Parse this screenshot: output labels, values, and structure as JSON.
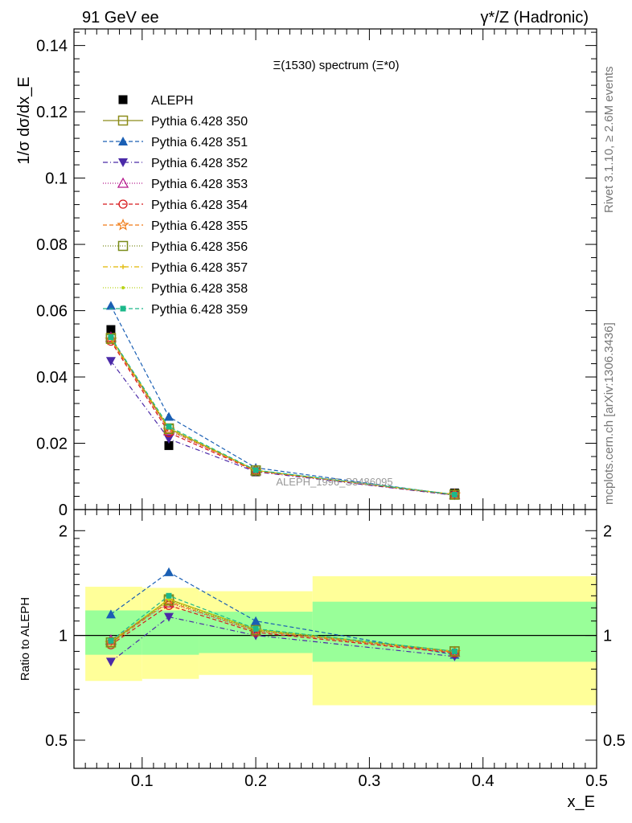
{
  "header": {
    "left": "91 GeV ee",
    "right": "γ*/Z (Hadronic)"
  },
  "side_text": {
    "rivet": "Rivet 3.1.10, ≥ 2.6M events",
    "mcplots": "mcplots.cern.ch [arXiv:1306.3436]"
  },
  "chart_data": [
    {
      "type": "line",
      "title": "Ξ(1530) spectrum (Ξ*0)",
      "ylabel": "1/σ dσ/dx_E",
      "xlabel": "",
      "xlim": [
        0.04,
        0.5
      ],
      "ylim": [
        0,
        0.145
      ],
      "yticks": [
        0,
        0.02,
        0.04,
        0.06,
        0.08,
        0.1,
        0.12,
        0.14
      ],
      "yticklabels": [
        "0",
        "0.02",
        "0.04",
        "0.06",
        "0.08",
        "0.1",
        "0.12",
        "0.14"
      ],
      "watermark": "ALEPH_1996_S3486095",
      "legend_position": "top-left",
      "x": [
        0.0725,
        0.1235,
        0.2,
        0.375
      ],
      "series": [
        {
          "name": "ALEPH",
          "color": "#000000",
          "dash": "",
          "marker": "square-filled",
          "values": [
            0.0543,
            0.0193,
            0.0114,
            0.005
          ]
        },
        {
          "name": "Pythia 6.428 350",
          "color": "#8c8c1a",
          "dash": "",
          "marker": "square-open",
          "values": [
            0.0518,
            0.0245,
            0.0118,
            0.0045
          ]
        },
        {
          "name": "Pythia 6.428 351",
          "color": "#1a5fb4",
          "dash": "5,3",
          "marker": "triangle-up-filled",
          "values": [
            0.0615,
            0.028,
            0.0126,
            0.0044
          ]
        },
        {
          "name": "Pythia 6.428 352",
          "color": "#4b2aa8",
          "dash": "6,3,1,3",
          "marker": "triangle-down-filled",
          "values": [
            0.0448,
            0.0213,
            0.0114,
            0.0043
          ]
        },
        {
          "name": "Pythia 6.428 353",
          "color": "#b5178c",
          "dash": "1,2",
          "marker": "triangle-up-open",
          "values": [
            0.052,
            0.0238,
            0.0117,
            0.0045
          ]
        },
        {
          "name": "Pythia 6.428 354",
          "color": "#d7191c",
          "dash": "5,3",
          "marker": "circle-open",
          "values": [
            0.0508,
            0.0232,
            0.0116,
            0.0044
          ]
        },
        {
          "name": "Pythia 6.428 355",
          "color": "#f07b16",
          "dash": "5,3",
          "marker": "star-open",
          "values": [
            0.0512,
            0.024,
            0.0117,
            0.0045
          ]
        },
        {
          "name": "Pythia 6.428 356",
          "color": "#7a8c1a",
          "dash": "1,2",
          "marker": "square-open",
          "values": [
            0.0515,
            0.0243,
            0.0118,
            0.0045
          ]
        },
        {
          "name": "Pythia 6.428 357",
          "color": "#e0b800",
          "dash": "6,3,1,3",
          "marker": "tick",
          "values": [
            0.0518,
            0.0246,
            0.0118,
            0.0045
          ]
        },
        {
          "name": "Pythia 6.428 358",
          "color": "#b8d417",
          "dash": "1,2",
          "marker": "dot",
          "values": [
            0.0517,
            0.0246,
            0.0118,
            0.0045
          ]
        },
        {
          "name": "Pythia 6.428 359",
          "color": "#1cb88a",
          "dash": "5,3",
          "marker": "square-small-filled",
          "values": [
            0.052,
            0.025,
            0.0119,
            0.0045
          ]
        }
      ]
    },
    {
      "type": "line",
      "title": "",
      "ylabel": "Ratio to ALEPH",
      "xlabel": "x_E",
      "xlim": [
        0.04,
        0.5
      ],
      "ylim": [
        0.415,
        2.3
      ],
      "log_y": true,
      "yticks": [
        0.5,
        1,
        2
      ],
      "yticklabels": [
        "0.5",
        "1",
        "2"
      ],
      "xticks": [
        0.1,
        0.2,
        0.3,
        0.4,
        0.5
      ],
      "xticklabels": [
        "0.1",
        "0.2",
        "0.3",
        "0.4",
        "0.5"
      ],
      "reference_line": 1,
      "bands": [
        {
          "x": [
            0.05,
            0.1
          ],
          "inner": [
            0.88,
            1.18
          ],
          "outer": [
            0.74,
            1.38
          ]
        },
        {
          "x": [
            0.1,
            0.15
          ],
          "inner": [
            0.88,
            1.18
          ],
          "outer": [
            0.75,
            1.37
          ]
        },
        {
          "x": [
            0.15,
            0.25
          ],
          "inner": [
            0.89,
            1.17
          ],
          "outer": [
            0.77,
            1.34
          ]
        },
        {
          "x": [
            0.25,
            0.5
          ],
          "inner": [
            0.84,
            1.25
          ],
          "outer": [
            0.63,
            1.48
          ]
        }
      ],
      "band_colors": {
        "inner": "#99ff99",
        "outer": "#ffff99"
      },
      "x": [
        0.0725,
        0.1235,
        0.2,
        0.375
      ],
      "series": [
        {
          "name": "Pythia 6.428 350",
          "values": [
            0.955,
            1.27,
            1.04,
            0.9
          ]
        },
        {
          "name": "Pythia 6.428 351",
          "values": [
            1.15,
            1.52,
            1.1,
            0.88
          ]
        },
        {
          "name": "Pythia 6.428 352",
          "values": [
            0.84,
            1.13,
            1.0,
            0.87
          ]
        },
        {
          "name": "Pythia 6.428 353",
          "values": [
            0.97,
            1.24,
            1.03,
            0.895
          ]
        },
        {
          "name": "Pythia 6.428 354",
          "values": [
            0.94,
            1.22,
            1.02,
            0.89
          ]
        },
        {
          "name": "Pythia 6.428 355",
          "values": [
            0.95,
            1.25,
            1.03,
            0.895
          ]
        },
        {
          "name": "Pythia 6.428 356",
          "values": [
            0.955,
            1.26,
            1.035,
            0.9
          ]
        },
        {
          "name": "Pythia 6.428 357",
          "values": [
            0.96,
            1.27,
            1.04,
            0.9
          ]
        },
        {
          "name": "Pythia 6.428 358",
          "values": [
            0.96,
            1.27,
            1.04,
            0.9
          ]
        },
        {
          "name": "Pythia 6.428 359",
          "values": [
            0.965,
            1.3,
            1.045,
            0.9
          ]
        }
      ]
    }
  ]
}
